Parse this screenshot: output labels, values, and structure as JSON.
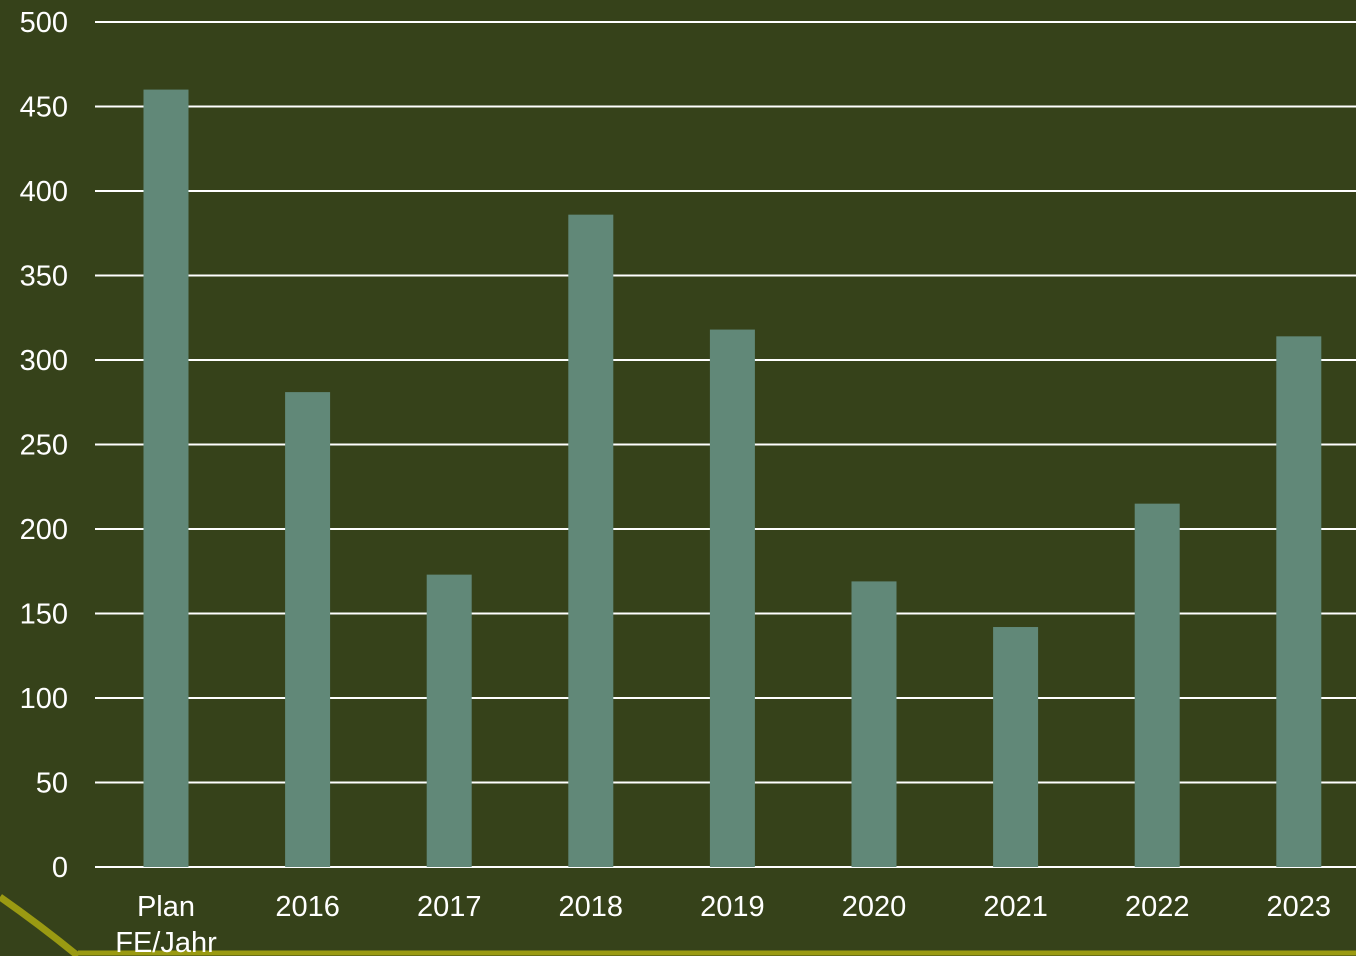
{
  "colors": {
    "background": "#36421a",
    "bar": "#618878",
    "grid": "#ffffff",
    "text": "#ffffff",
    "accent_curve": "#9a9a12"
  },
  "chart_data": {
    "type": "bar",
    "title": "",
    "xlabel": "",
    "ylabel": "",
    "categories": [
      "Plan FE/Jahr",
      "2016",
      "2017",
      "2018",
      "2019",
      "2020",
      "2021",
      "2022",
      "2023"
    ],
    "category_label_lines": [
      [
        "Plan",
        "FE/Jahr"
      ],
      [
        "2016"
      ],
      [
        "2017"
      ],
      [
        "2018"
      ],
      [
        "2019"
      ],
      [
        "2020"
      ],
      [
        "2021"
      ],
      [
        "2022"
      ],
      [
        "2023"
      ]
    ],
    "values": [
      460,
      281,
      173,
      386,
      318,
      169,
      142,
      215,
      314
    ],
    "ylim": [
      0,
      500
    ],
    "yticks": [
      0,
      50,
      100,
      150,
      200,
      250,
      300,
      350,
      400,
      450,
      500
    ],
    "grid": true,
    "legend": "none"
  }
}
